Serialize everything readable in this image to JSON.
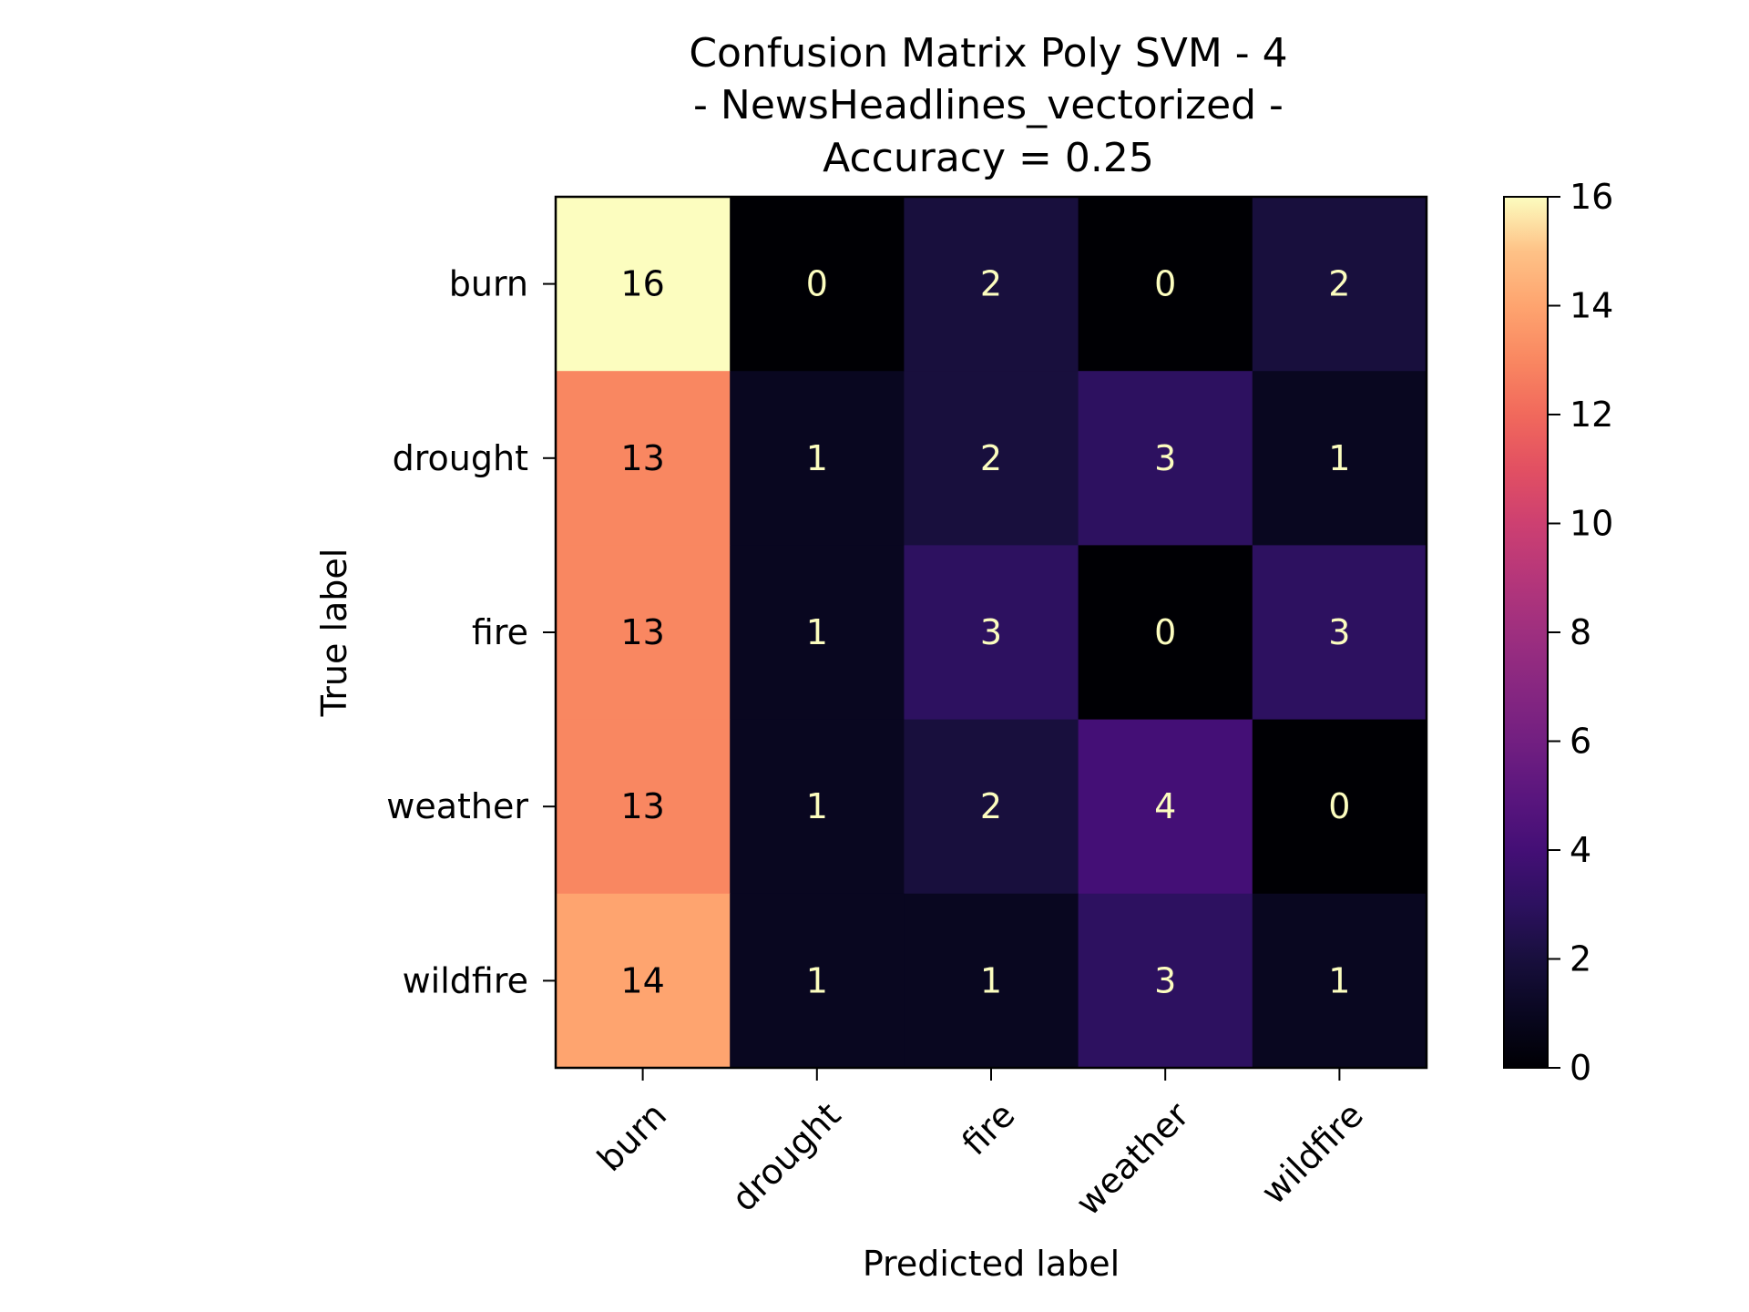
{
  "chart_data": {
    "type": "heatmap",
    "title_lines": [
      "Confusion Matrix Poly SVM - 4",
      "- NewsHeadlines_vectorized -",
      "Accuracy = 0.25"
    ],
    "xlabel": "Predicted label",
    "ylabel": "True label",
    "x_categories": [
      "burn",
      "drought",
      "fire",
      "weather",
      "wildfire"
    ],
    "y_categories": [
      "burn",
      "drought",
      "fire",
      "weather",
      "wildfire"
    ],
    "matrix": [
      [
        16,
        0,
        2,
        0,
        2
      ],
      [
        13,
        1,
        2,
        3,
        1
      ],
      [
        13,
        1,
        3,
        0,
        3
      ],
      [
        13,
        1,
        2,
        4,
        0
      ],
      [
        14,
        1,
        1,
        3,
        1
      ]
    ],
    "colorscale": "magma",
    "vmin": 0,
    "vmax": 16,
    "colorbar_ticks": [
      0,
      2,
      4,
      6,
      8,
      10,
      12,
      14,
      16
    ],
    "annotation_colors": {
      "light": "#fcfdbf",
      "dark": "#000004"
    }
  }
}
